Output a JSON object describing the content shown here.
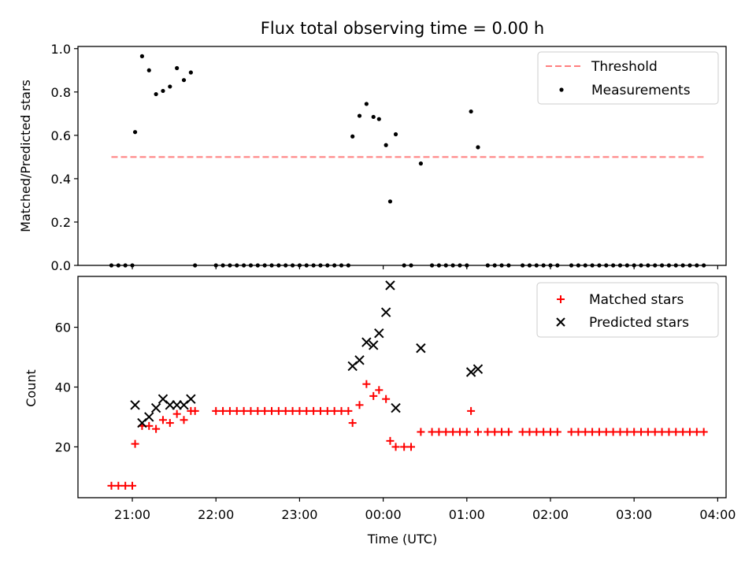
{
  "figure": {
    "title": "Flux total observing time = 0.00 h"
  },
  "chart_data": [
    {
      "type": "scatter",
      "ylabel": "Matched/Predicted stars",
      "ylim": [
        0,
        1.01
      ],
      "yticks": [
        "0.0",
        "0.2",
        "0.4",
        "0.6",
        "0.8",
        "1.0"
      ],
      "xlim": [
        "20:21",
        "04:06"
      ],
      "xtick_labels_visible": false,
      "legend_position": "top-right",
      "grid": false,
      "threshold": {
        "name": "Threshold",
        "value": 0.5,
        "x_start": "20:45",
        "x_end": "03:50",
        "color": "#ff7f7f",
        "style": "dashed"
      },
      "series": [
        {
          "name": "Measurements",
          "color": "#000000",
          "marker": "dot",
          "points": [
            [
              "20:45",
              0
            ],
            [
              "20:50",
              0
            ],
            [
              "20:55",
              0
            ],
            [
              "21:00",
              0
            ],
            [
              "21:02",
              0.615
            ],
            [
              "21:07",
              0.965
            ],
            [
              "21:12",
              0.9
            ],
            [
              "21:17",
              0.79
            ],
            [
              "21:22",
              0.805
            ],
            [
              "21:27",
              0.825
            ],
            [
              "21:32",
              0.91
            ],
            [
              "21:37",
              0.855
            ],
            [
              "21:42",
              0.89
            ],
            [
              "21:45",
              0
            ],
            [
              "22:00",
              0
            ],
            [
              "22:05",
              0
            ],
            [
              "22:10",
              0
            ],
            [
              "22:15",
              0
            ],
            [
              "22:20",
              0
            ],
            [
              "22:25",
              0
            ],
            [
              "22:30",
              0
            ],
            [
              "22:35",
              0
            ],
            [
              "22:40",
              0
            ],
            [
              "22:45",
              0
            ],
            [
              "22:50",
              0
            ],
            [
              "22:55",
              0
            ],
            [
              "23:00",
              0
            ],
            [
              "23:05",
              0
            ],
            [
              "23:10",
              0
            ],
            [
              "23:15",
              0
            ],
            [
              "23:20",
              0
            ],
            [
              "23:25",
              0
            ],
            [
              "23:30",
              0
            ],
            [
              "23:35",
              0
            ],
            [
              "23:38",
              0.595
            ],
            [
              "23:43",
              0.69
            ],
            [
              "23:48",
              0.745
            ],
            [
              "23:53",
              0.685
            ],
            [
              "23:57",
              0.675
            ],
            [
              "00:02",
              0.555
            ],
            [
              "00:05",
              0.295
            ],
            [
              "00:09",
              0.605
            ],
            [
              "00:15",
              0
            ],
            [
              "00:20",
              0
            ],
            [
              "00:27",
              0.47
            ],
            [
              "00:35",
              0
            ],
            [
              "00:40",
              0
            ],
            [
              "00:45",
              0
            ],
            [
              "00:50",
              0
            ],
            [
              "00:55",
              0
            ],
            [
              "01:00",
              0
            ],
            [
              "01:03",
              0.71
            ],
            [
              "01:08",
              0.545
            ],
            [
              "01:15",
              0
            ],
            [
              "01:20",
              0
            ],
            [
              "01:25",
              0
            ],
            [
              "01:30",
              0
            ],
            [
              "01:40",
              0
            ],
            [
              "01:45",
              0
            ],
            [
              "01:50",
              0
            ],
            [
              "01:55",
              0
            ],
            [
              "02:00",
              0
            ],
            [
              "02:05",
              0
            ],
            [
              "02:15",
              0
            ],
            [
              "02:20",
              0
            ],
            [
              "02:25",
              0
            ],
            [
              "02:30",
              0
            ],
            [
              "02:35",
              0
            ],
            [
              "02:40",
              0
            ],
            [
              "02:45",
              0
            ],
            [
              "02:50",
              0
            ],
            [
              "02:55",
              0
            ],
            [
              "03:00",
              0
            ],
            [
              "03:05",
              0
            ],
            [
              "03:10",
              0
            ],
            [
              "03:15",
              0
            ],
            [
              "03:20",
              0
            ],
            [
              "03:25",
              0
            ],
            [
              "03:30",
              0
            ],
            [
              "03:35",
              0
            ],
            [
              "03:40",
              0
            ],
            [
              "03:45",
              0
            ],
            [
              "03:50",
              0
            ]
          ]
        }
      ]
    },
    {
      "type": "scatter",
      "xlabel": "Time (UTC)",
      "ylabel": "Count",
      "ylim": [
        3,
        77
      ],
      "yticks": [
        "20",
        "40",
        "60"
      ],
      "xlim": [
        "20:21",
        "04:06"
      ],
      "xticks": [
        "21:00",
        "22:00",
        "23:00",
        "00:00",
        "01:00",
        "02:00",
        "03:00",
        "04:00"
      ],
      "legend_position": "top-right",
      "grid": false,
      "series": [
        {
          "name": "Matched stars",
          "color": "#ff0000",
          "marker": "plus",
          "points": [
            [
              "20:45",
              7
            ],
            [
              "20:50",
              7
            ],
            [
              "20:55",
              7
            ],
            [
              "21:00",
              7
            ],
            [
              "21:02",
              21
            ],
            [
              "21:07",
              27
            ],
            [
              "21:12",
              27
            ],
            [
              "21:17",
              26
            ],
            [
              "21:22",
              29
            ],
            [
              "21:27",
              28
            ],
            [
              "21:32",
              31
            ],
            [
              "21:37",
              29
            ],
            [
              "21:42",
              32
            ],
            [
              "21:45",
              32
            ],
            [
              "22:00",
              32
            ],
            [
              "22:05",
              32
            ],
            [
              "22:10",
              32
            ],
            [
              "22:15",
              32
            ],
            [
              "22:20",
              32
            ],
            [
              "22:25",
              32
            ],
            [
              "22:30",
              32
            ],
            [
              "22:35",
              32
            ],
            [
              "22:40",
              32
            ],
            [
              "22:45",
              32
            ],
            [
              "22:50",
              32
            ],
            [
              "22:55",
              32
            ],
            [
              "23:00",
              32
            ],
            [
              "23:05",
              32
            ],
            [
              "23:10",
              32
            ],
            [
              "23:15",
              32
            ],
            [
              "23:20",
              32
            ],
            [
              "23:25",
              32
            ],
            [
              "23:30",
              32
            ],
            [
              "23:35",
              32
            ],
            [
              "23:38",
              28
            ],
            [
              "23:43",
              34
            ],
            [
              "23:48",
              41
            ],
            [
              "23:53",
              37
            ],
            [
              "23:57",
              39
            ],
            [
              "00:02",
              36
            ],
            [
              "00:05",
              22
            ],
            [
              "00:09",
              20
            ],
            [
              "00:15",
              20
            ],
            [
              "00:20",
              20
            ],
            [
              "00:27",
              25
            ],
            [
              "00:35",
              25
            ],
            [
              "00:40",
              25
            ],
            [
              "00:45",
              25
            ],
            [
              "00:50",
              25
            ],
            [
              "00:55",
              25
            ],
            [
              "01:00",
              25
            ],
            [
              "01:03",
              32
            ],
            [
              "01:08",
              25
            ],
            [
              "01:15",
              25
            ],
            [
              "01:20",
              25
            ],
            [
              "01:25",
              25
            ],
            [
              "01:30",
              25
            ],
            [
              "01:40",
              25
            ],
            [
              "01:45",
              25
            ],
            [
              "01:50",
              25
            ],
            [
              "01:55",
              25
            ],
            [
              "02:00",
              25
            ],
            [
              "02:05",
              25
            ],
            [
              "02:15",
              25
            ],
            [
              "02:20",
              25
            ],
            [
              "02:25",
              25
            ],
            [
              "02:30",
              25
            ],
            [
              "02:35",
              25
            ],
            [
              "02:40",
              25
            ],
            [
              "02:45",
              25
            ],
            [
              "02:50",
              25
            ],
            [
              "02:55",
              25
            ],
            [
              "03:00",
              25
            ],
            [
              "03:05",
              25
            ],
            [
              "03:10",
              25
            ],
            [
              "03:15",
              25
            ],
            [
              "03:20",
              25
            ],
            [
              "03:25",
              25
            ],
            [
              "03:30",
              25
            ],
            [
              "03:35",
              25
            ],
            [
              "03:40",
              25
            ],
            [
              "03:45",
              25
            ],
            [
              "03:50",
              25
            ]
          ]
        },
        {
          "name": "Predicted stars",
          "color": "#000000",
          "marker": "x",
          "points": [
            [
              "21:02",
              34
            ],
            [
              "21:07",
              28
            ],
            [
              "21:12",
              30
            ],
            [
              "21:17",
              33
            ],
            [
              "21:22",
              36
            ],
            [
              "21:27",
              34
            ],
            [
              "21:32",
              34
            ],
            [
              "21:37",
              34
            ],
            [
              "21:42",
              36
            ],
            [
              "23:38",
              47
            ],
            [
              "23:43",
              49
            ],
            [
              "23:48",
              55
            ],
            [
              "23:53",
              54
            ],
            [
              "23:57",
              58
            ],
            [
              "00:02",
              65
            ],
            [
              "00:05",
              74
            ],
            [
              "00:09",
              33
            ],
            [
              "00:27",
              53
            ],
            [
              "01:03",
              45
            ],
            [
              "01:08",
              46
            ]
          ]
        }
      ]
    }
  ]
}
